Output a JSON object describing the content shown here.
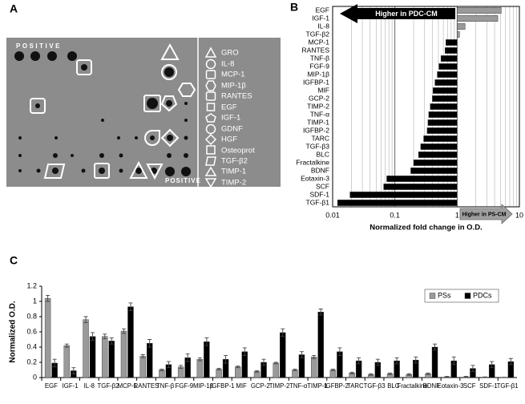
{
  "panel_labels": [
    "A",
    "B",
    "C"
  ],
  "array_image": {
    "positive_labels": [
      "POSITIVE",
      "POSITIVE"
    ],
    "legend": [
      "GRO",
      "IL-8",
      "MCP-1",
      "MIP-1β",
      "RANTES",
      "EGF",
      "IGF-1",
      "GDNF",
      "HGF",
      "Osteoprot",
      "TGF-β2",
      "TIMP-1",
      "TIMP-2"
    ]
  },
  "chart_data": [
    {
      "type": "hbar",
      "xlabel": "Normalized fold change in O.D.",
      "annotations": [
        "Higher in PDC-CM",
        "Higher in PS-CM"
      ],
      "categories": [
        "EGF",
        "IGF-1",
        "IL-8",
        "TGF-β2",
        "MCP-1",
        "RANTES",
        "TNF-β",
        "FGF-9",
        "MIP-1β",
        "IGFBP-1",
        "MIF",
        "GCP-2",
        "TIMP-2",
        "TNF-α",
        "TIMP-1",
        "IGFBP-2",
        "TARC",
        "TGF-β3",
        "BLC",
        "Fractalkine",
        "BDNF",
        "Eotaxin-3",
        "SCF",
        "SDF-1",
        "TGF-β1"
      ],
      "values": [
        5.1,
        4.5,
        1.34,
        1.09,
        0.66,
        0.64,
        0.55,
        0.51,
        0.48,
        0.44,
        0.41,
        0.4,
        0.37,
        0.35,
        0.34,
        0.33,
        0.29,
        0.26,
        0.24,
        0.2,
        0.18,
        0.074,
        0.066,
        0.019,
        0.012
      ],
      "colors": [
        "#9a9a9a",
        "#9a9a9a",
        "#9a9a9a",
        "#9a9a9a",
        "#000000",
        "#000000",
        "#000000",
        "#000000",
        "#000000",
        "#000000",
        "#000000",
        "#000000",
        "#000000",
        "#000000",
        "#000000",
        "#000000",
        "#000000",
        "#000000",
        "#000000",
        "#000000",
        "#000000",
        "#000000",
        "#000000",
        "#000000",
        "#000000"
      ],
      "baseline": 1,
      "log_scale": true,
      "grid": true,
      "xlim": [
        0.01,
        10
      ],
      "xticks": [
        0.01,
        0.1,
        1,
        10
      ],
      "minor_xticks": [
        0.02,
        0.03,
        0.04,
        0.05,
        0.06,
        0.07,
        0.08,
        0.09,
        0.2,
        0.3,
        0.4,
        0.5,
        0.6,
        0.7,
        0.8,
        0.9,
        2,
        3,
        4,
        5,
        6,
        7,
        8,
        9
      ]
    },
    {
      "type": "grouped_bar",
      "ylabel": "Normalized O.D.",
      "categories": [
        "EGF",
        "IGF-1",
        "IL-8",
        "TGF-β2",
        "MCP-1",
        "RANTES",
        "TNF-β",
        "FGF-9",
        "MIP-1β",
        "IGFBP-1",
        "MIF",
        "GCP-2",
        "TIMP-2",
        "TNF-α",
        "TIMP-1",
        "IGFBP-2",
        "TARC",
        "TGF-β3",
        "BLC",
        "Fractalkine",
        "BDNF",
        "Eotaxin-3",
        "SCF",
        "SDF-1",
        "TGF-β1"
      ],
      "series": [
        {
          "name": "PSs",
          "color": "#9a9a9a",
          "values": [
            1.04,
            0.42,
            0.76,
            0.54,
            0.61,
            0.28,
            0.1,
            0.14,
            0.24,
            0.11,
            0.14,
            0.08,
            0.19,
            0.1,
            0.27,
            0.1,
            0.06,
            0.04,
            0.05,
            0.04,
            0.05,
            0.01,
            0.01,
            0.005,
            0.002
          ],
          "errors": [
            0.04,
            0.02,
            0.04,
            0.03,
            0.03,
            0.02,
            0.01,
            0.02,
            0.02,
            0.01,
            0.01,
            0.01,
            0.01,
            0.01,
            0.02,
            0.01,
            0.01,
            0.01,
            0.01,
            0.01,
            0.01,
            0.005,
            0.005,
            0.003,
            0.002
          ]
        },
        {
          "name": "PDCs",
          "color": "#000000",
          "values": [
            0.19,
            0.09,
            0.54,
            0.48,
            0.93,
            0.45,
            0.17,
            0.26,
            0.47,
            0.24,
            0.34,
            0.2,
            0.59,
            0.3,
            0.86,
            0.34,
            0.22,
            0.2,
            0.22,
            0.23,
            0.4,
            0.22,
            0.12,
            0.17,
            0.21
          ],
          "errors": [
            0.05,
            0.04,
            0.05,
            0.04,
            0.05,
            0.05,
            0.04,
            0.05,
            0.05,
            0.05,
            0.05,
            0.04,
            0.05,
            0.04,
            0.04,
            0.05,
            0.04,
            0.04,
            0.04,
            0.04,
            0.04,
            0.05,
            0.04,
            0.04,
            0.04
          ]
        }
      ],
      "ylim": [
        0,
        1.2
      ],
      "yticks": [
        0,
        0.2,
        0.4,
        0.6,
        0.8,
        1,
        1.2
      ],
      "grid": false,
      "legend": "upper right"
    }
  ]
}
